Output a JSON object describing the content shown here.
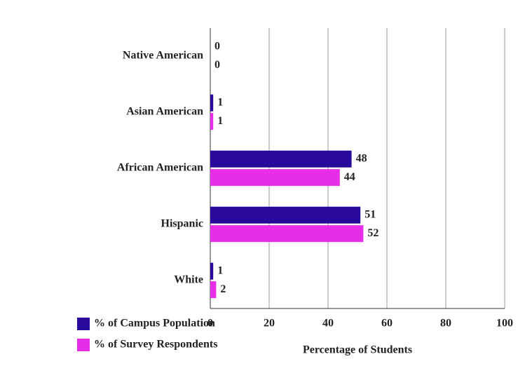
{
  "chart_data": {
    "type": "hbar",
    "categories": [
      "Native American",
      "Asian American",
      "African American",
      "Hispanic",
      "White"
    ],
    "series": [
      {
        "name": "% of Campus Population",
        "color": "#2a0a9a",
        "values": [
          0,
          1,
          48,
          51,
          1
        ]
      },
      {
        "name": "% of Survey Respondents",
        "color": "#e62ee6",
        "values": [
          0,
          1,
          44,
          52,
          2
        ]
      }
    ],
    "xlim": [
      0,
      100
    ],
    "xticks": [
      0,
      20,
      40,
      60,
      80,
      100
    ],
    "xlabel": "Percentage of Students",
    "grid": true
  }
}
